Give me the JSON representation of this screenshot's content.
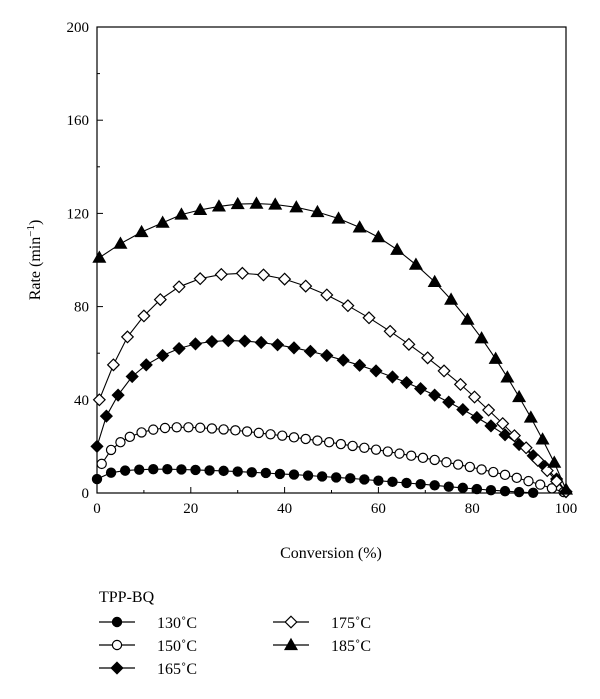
{
  "chart_data": {
    "type": "line",
    "xlabel": "Conversion (%)",
    "ylabel_main": "Rate (min",
    "ylabel_sup": "−1",
    "ylabel_close": ")",
    "xlim": [
      0,
      100
    ],
    "ylim": [
      0,
      200
    ],
    "xticks": [
      0,
      20,
      40,
      60,
      80,
      100
    ],
    "yticks": [
      0,
      40,
      80,
      120,
      160,
      200
    ],
    "xtick_labels": [
      "0",
      "20",
      "40",
      "60",
      "80",
      "100"
    ],
    "ytick_labels": [
      "0",
      "40",
      "80",
      "120",
      "160",
      "200"
    ],
    "grid": false,
    "legend_title": "TPP-BQ",
    "legend_placement": "bottom-left, below plot",
    "series": [
      {
        "name": "130˚C",
        "marker": "filled-circle",
        "x": [
          0,
          3,
          6,
          9,
          12,
          15,
          18,
          21,
          24,
          27,
          30,
          33,
          36,
          39,
          42,
          45,
          48,
          51,
          54,
          57,
          60,
          63,
          66,
          69,
          72,
          75,
          78,
          81,
          84,
          87,
          90,
          93
        ],
        "y": [
          6.0,
          8.7,
          9.6,
          10.0,
          10.2,
          10.2,
          10.1,
          9.9,
          9.7,
          9.5,
          9.2,
          8.9,
          8.6,
          8.2,
          7.9,
          7.5,
          7.1,
          6.7,
          6.3,
          5.8,
          5.3,
          4.8,
          4.3,
          3.8,
          3.3,
          2.7,
          2.2,
          1.7,
          1.2,
          0.8,
          0.4,
          0.1
        ]
      },
      {
        "name": "150˚C",
        "marker": "open-circle",
        "x": [
          1,
          3,
          5,
          7,
          9.5,
          12,
          14.5,
          17,
          19.5,
          22,
          24.5,
          27,
          29.5,
          32,
          34.5,
          37,
          39.5,
          42,
          44.5,
          47,
          49.5,
          52,
          54.5,
          57,
          59.5,
          62,
          64.5,
          67,
          69.5,
          72,
          74.5,
          77,
          79.5,
          82,
          84.5,
          87,
          89.5,
          92,
          94.5,
          97,
          99.5
        ],
        "y": [
          12.5,
          18.5,
          21.8,
          24.1,
          26.0,
          27.2,
          27.9,
          28.2,
          28.2,
          28.0,
          27.7,
          27.3,
          26.9,
          26.4,
          25.8,
          25.2,
          24.6,
          23.9,
          23.2,
          22.5,
          21.8,
          21.0,
          20.2,
          19.4,
          18.6,
          17.8,
          16.9,
          16.0,
          15.1,
          14.2,
          13.2,
          12.2,
          11.2,
          10.1,
          9.0,
          7.8,
          6.5,
          5.1,
          3.6,
          2.0,
          0.4
        ]
      },
      {
        "name": "165˚C",
        "marker": "filled-diamond",
        "x": [
          0,
          2,
          4.5,
          7.5,
          10.5,
          14,
          17.5,
          21,
          24.5,
          28,
          31.5,
          35,
          38.5,
          42,
          45.5,
          49,
          52.5,
          56,
          59.5,
          63,
          66,
          69,
          72,
          75,
          78,
          81,
          84,
          87,
          90,
          93,
          95.5,
          98,
          100
        ],
        "y": [
          20,
          33,
          42,
          50,
          55,
          59,
          62,
          64,
          65,
          65.4,
          65.2,
          64.6,
          63.6,
          62.3,
          60.8,
          59.0,
          57.0,
          54.8,
          52.4,
          49.8,
          47.4,
          44.8,
          42.0,
          39.0,
          35.8,
          32.4,
          28.8,
          25.0,
          20.8,
          16.0,
          11.4,
          6.0,
          0.5
        ]
      },
      {
        "name": "175˚C",
        "marker": "open-diamond",
        "x": [
          0.5,
          3.5,
          6.5,
          10,
          13.5,
          17.5,
          22,
          26.5,
          31,
          35.5,
          40,
          44.5,
          49,
          53.5,
          58,
          62.5,
          66.5,
          70.5,
          74,
          77.5,
          80.5,
          83.5,
          86.5,
          89,
          91.5,
          94,
          96,
          98,
          100
        ],
        "y": [
          40,
          55,
          67,
          76,
          83,
          88.5,
          92,
          93.8,
          94.3,
          93.6,
          91.8,
          88.8,
          85,
          80.4,
          75.2,
          69.4,
          63.8,
          58,
          52.4,
          46.6,
          41.2,
          35.6,
          29.8,
          24.6,
          19.4,
          14,
          9.6,
          5.0,
          0.6
        ]
      },
      {
        "name": "185˚C",
        "marker": "filled-triangle",
        "x": [
          0.5,
          5,
          9.5,
          14,
          18,
          22,
          26,
          30,
          34,
          38,
          42.5,
          47,
          51.5,
          56,
          60,
          64,
          68,
          72,
          75.5,
          79,
          82,
          85,
          87.5,
          90,
          92.5,
          95,
          97.5,
          100
        ],
        "y": [
          101,
          107,
          112,
          116,
          119.5,
          121.5,
          123,
          124,
          124.2,
          123.8,
          122.6,
          120.6,
          117.8,
          114,
          109.8,
          104.4,
          98,
          90.6,
          83,
          74.4,
          66.4,
          57.6,
          49.6,
          41.2,
          32.4,
          23,
          13,
          1.5
        ]
      }
    ]
  }
}
